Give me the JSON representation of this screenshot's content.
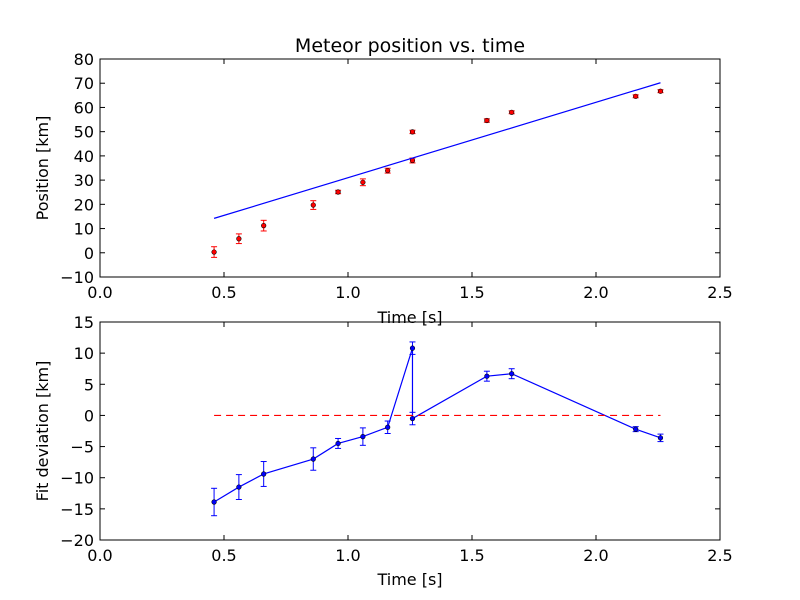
{
  "chart_data": [
    {
      "type": "scatter",
      "title": "Meteor position vs. time",
      "xlabel": "Time [s]",
      "ylabel": "Position [km]",
      "xlim": [
        0.0,
        2.5
      ],
      "ylim": [
        -10,
        80
      ],
      "xticks": [
        "0.0",
        "0.5",
        "1.0",
        "1.5",
        "2.0",
        "2.5"
      ],
      "yticks": [
        "−10",
        "0",
        "10",
        "20",
        "30",
        "40",
        "50",
        "60",
        "70",
        "80"
      ],
      "grid": false,
      "series": [
        {
          "kind": "errorbar-points",
          "color": "#ff0000",
          "x": [
            0.46,
            0.56,
            0.66,
            0.86,
            0.96,
            1.06,
            1.16,
            1.26,
            1.26,
            1.56,
            1.66,
            2.16,
            2.26
          ],
          "y": [
            0.3,
            5.8,
            11.2,
            19.7,
            25.1,
            29.1,
            33.9,
            38.1,
            49.9,
            54.6,
            58.0,
            64.6,
            66.7
          ],
          "yerr": [
            2.2,
            2.0,
            2.2,
            1.8,
            0.7,
            1.4,
            1.0,
            1.0,
            0.7,
            0.7,
            0.6,
            0.6,
            0.6
          ]
        },
        {
          "kind": "line",
          "color": "#0000ff",
          "x": [
            0.46,
            2.26
          ],
          "y": [
            14.2,
            70.2
          ]
        }
      ]
    },
    {
      "type": "line",
      "title": "",
      "xlabel": "Time [s]",
      "ylabel": "Fit deviation [km]",
      "xlim": [
        0.0,
        2.5
      ],
      "ylim": [
        -20,
        15
      ],
      "xticks": [
        "0.0",
        "0.5",
        "1.0",
        "1.5",
        "2.0",
        "2.5"
      ],
      "yticks": [
        "−20",
        "−15",
        "−10",
        "−5",
        "0",
        "5",
        "10",
        "15"
      ],
      "grid": false,
      "series": [
        {
          "kind": "errorbar-line",
          "color": "#0000ff",
          "x": [
            0.46,
            0.56,
            0.66,
            0.86,
            0.96,
            1.06,
            1.16,
            1.26,
            1.26,
            1.56,
            1.66,
            2.16,
            2.26
          ],
          "y": [
            -13.9,
            -11.5,
            -9.4,
            -7.0,
            -4.5,
            -3.4,
            -1.9,
            10.8,
            -0.5,
            6.3,
            6.7,
            -2.2,
            -3.6
          ],
          "yerr": [
            2.2,
            2.0,
            2.0,
            1.8,
            0.8,
            1.4,
            1.0,
            1.0,
            1.0,
            0.8,
            0.8,
            0.4,
            0.6
          ]
        },
        {
          "kind": "dashed-line",
          "color": "#ff0000",
          "x": [
            0.46,
            2.26
          ],
          "y": [
            0,
            0
          ]
        }
      ]
    }
  ]
}
